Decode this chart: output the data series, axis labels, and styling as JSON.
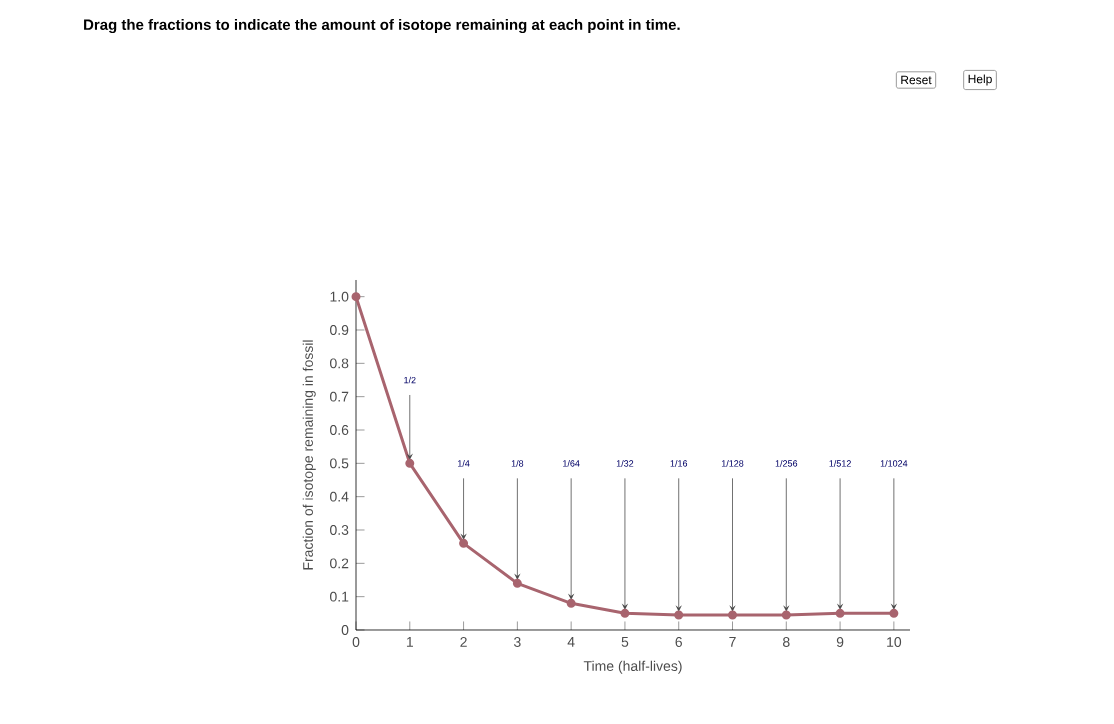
{
  "chart_data": {
    "type": "line",
    "title": "Drag the fractions to indicate the amount of isotope remaining at each point in time.",
    "xlabel": "Time (half-lives)",
    "ylabel": "Fraction of isotope remaining in fossil",
    "x": [
      0,
      1,
      2,
      3,
      4,
      5,
      6,
      7,
      8,
      9,
      10
    ],
    "values": [
      1.0,
      0.5,
      0.26,
      0.14,
      0.08,
      0.05,
      0.045,
      0.045,
      0.045,
      0.05,
      0.05
    ],
    "color": "#a8646e",
    "marker": "circle",
    "line_style": "solid",
    "grid": false,
    "xlim": [
      0,
      10.3
    ],
    "ylim": [
      0,
      1.05
    ],
    "xticks": [
      0,
      1,
      2,
      3,
      4,
      5,
      6,
      7,
      8,
      9,
      10
    ],
    "yticks": [
      0,
      0.1,
      0.2,
      0.3,
      0.4,
      0.5,
      0.6,
      0.7,
      0.8,
      0.9,
      {
        "value": 1,
        "label": "1.0"
      }
    ],
    "annotations": [
      "1/2",
      "1/4",
      "1/8",
      "1/64",
      "1/32",
      "1/16",
      "1/128",
      "1/256",
      "1/512",
      "1/1024",
      "Reset",
      "Help"
    ]
  }
}
